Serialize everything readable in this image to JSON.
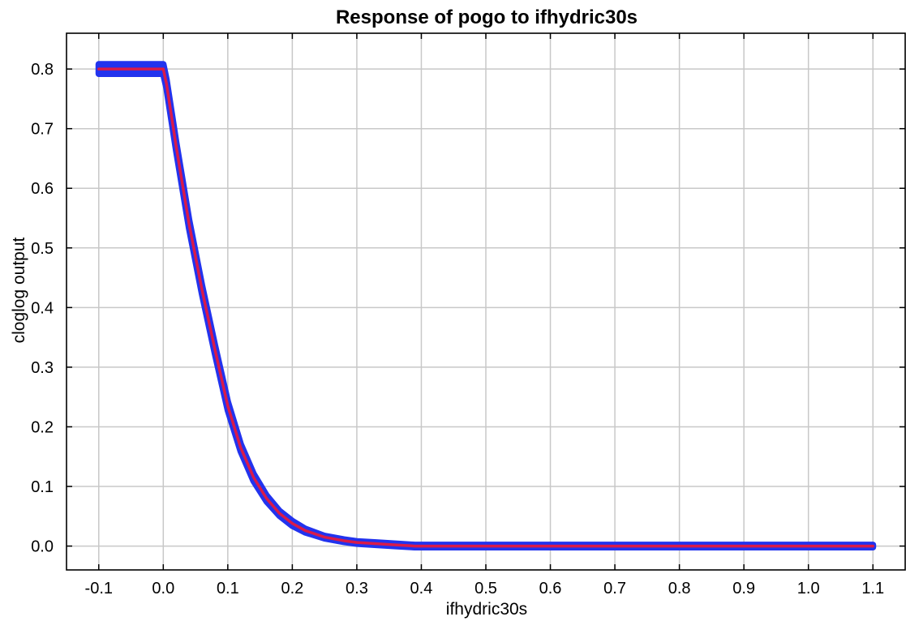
{
  "chart_data": {
    "type": "line",
    "title": "Response of pogo to ifhydric30s",
    "xlabel": "ifhydric30s",
    "ylabel": "cloglog output",
    "xlim": [
      -0.15,
      1.15
    ],
    "ylim": [
      -0.04,
      0.86
    ],
    "x_ticks": [
      -0.1,
      0.0,
      0.1,
      0.2,
      0.3,
      0.4,
      0.5,
      0.6,
      0.7,
      0.8,
      0.9,
      1.0,
      1.1
    ],
    "x_tick_labels": [
      "-0.1",
      "0.0",
      "0.1",
      "0.2",
      "0.3",
      "0.4",
      "0.5",
      "0.6",
      "0.7",
      "0.8",
      "0.9",
      "1.0",
      "1.1"
    ],
    "y_ticks": [
      0.0,
      0.1,
      0.2,
      0.3,
      0.4,
      0.5,
      0.6,
      0.7,
      0.8
    ],
    "y_tick_labels": [
      "0.0",
      "0.1",
      "0.2",
      "0.3",
      "0.4",
      "0.5",
      "0.6",
      "0.7",
      "0.8"
    ],
    "grid": true,
    "series": [
      {
        "role": "spread band",
        "color": "#2233ee",
        "x": [
          -0.1,
          0.0,
          0.005,
          0.02,
          0.04,
          0.06,
          0.08,
          0.1,
          0.12,
          0.14,
          0.16,
          0.18,
          0.2,
          0.22,
          0.25,
          0.28,
          0.3,
          0.33,
          0.36,
          0.39,
          0.45,
          0.6,
          0.8,
          1.0,
          1.1
        ],
        "values": [
          0.8,
          0.8,
          0.775,
          0.67,
          0.54,
          0.43,
          0.33,
          0.235,
          0.165,
          0.115,
          0.08,
          0.055,
          0.038,
          0.026,
          0.015,
          0.009,
          0.006,
          0.004,
          0.002,
          0.0,
          0.0,
          0.0,
          0.0,
          0.0,
          0.0
        ],
        "half_width": [
          0.008,
          0.008,
          0.007,
          0.007,
          0.007,
          0.007,
          0.007,
          0.007,
          0.006,
          0.006,
          0.005,
          0.004,
          0.004,
          0.003,
          0.002,
          0.002,
          0.002,
          0.002,
          0.002,
          0.002,
          0.002,
          0.002,
          0.002,
          0.002,
          0.002
        ]
      },
      {
        "role": "mean response",
        "color": "#d81b4a",
        "x": [
          -0.1,
          0.0,
          0.005,
          0.02,
          0.04,
          0.06,
          0.08,
          0.1,
          0.12,
          0.14,
          0.16,
          0.18,
          0.2,
          0.22,
          0.25,
          0.28,
          0.3,
          0.33,
          0.36,
          0.39,
          0.45,
          0.6,
          0.8,
          1.0,
          1.1
        ],
        "values": [
          0.8,
          0.8,
          0.775,
          0.67,
          0.54,
          0.43,
          0.33,
          0.235,
          0.165,
          0.115,
          0.08,
          0.055,
          0.038,
          0.026,
          0.015,
          0.009,
          0.006,
          0.004,
          0.002,
          0.0,
          0.0,
          0.0,
          0.0,
          0.0,
          0.0
        ]
      }
    ]
  }
}
